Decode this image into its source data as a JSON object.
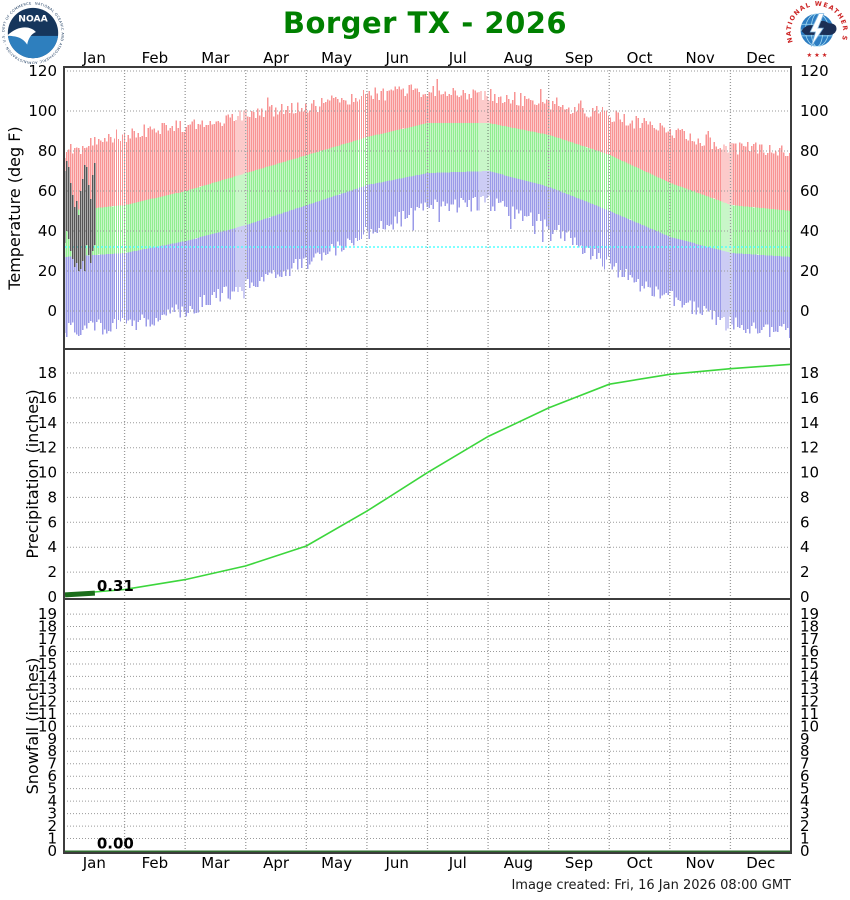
{
  "header": {
    "title": "Borger TX - 2026",
    "title_color": "#008000"
  },
  "logos": {
    "left": "noaa-logo",
    "right": "nws-logo",
    "noaa_text": "NOAA",
    "noaa_ring_text": "NATIONAL OCEANIC AND ATMOSPHERIC ADMINISTRATION - U.S. DEPARTMENT OF COMMERCE",
    "nws_ring_text": "NATIONAL WEATHER SERVICE",
    "nws_stars": "★ ★ ★"
  },
  "months": [
    "Jan",
    "Feb",
    "Mar",
    "Apr",
    "May",
    "Jun",
    "Jul",
    "Aug",
    "Sep",
    "Oct",
    "Nov",
    "Dec"
  ],
  "footer": {
    "created": "Image created: Fri, 16 Jan 2026 08:00 GMT"
  },
  "colors": {
    "record_high_band": "#f89494",
    "normal_band": "#90ee90",
    "record_low_band": "#9a9ae8",
    "observed_temp_bars": "#565656",
    "freeze_line": "#55ffff",
    "normal_precip_line": "#3cd63c",
    "observed_precip": "#1b6e1b",
    "observed_snow": "#2e6b2e",
    "grid": "#9a9a9a",
    "border": "#3c3c3c",
    "tick_text": "#000000"
  },
  "chart_data": [
    {
      "type": "area",
      "panel": "temperature",
      "ylabel": "Temperature (deg F)",
      "ylim": [
        -20,
        122
      ],
      "yticks": [
        0,
        20,
        40,
        60,
        80,
        100,
        120
      ],
      "grid": true,
      "freeze_line": 32,
      "series": [
        {
          "name": "record_high",
          "jagged": true,
          "monthly": [
            79,
            86,
            92,
            97,
            101,
            107,
            109,
            107,
            103,
            97,
            88,
            81,
            78
          ]
        },
        {
          "name": "normal_high",
          "monthly": [
            50,
            53,
            60,
            69,
            78,
            87,
            94,
            94,
            88,
            78,
            64,
            53,
            50
          ]
        },
        {
          "name": "normal_low",
          "monthly": [
            27,
            29,
            35,
            43,
            53,
            63,
            69,
            70,
            62,
            50,
            37,
            29,
            27
          ]
        },
        {
          "name": "record_low",
          "jagged": true,
          "monthly": [
            -8,
            -6,
            2,
            14,
            26,
            40,
            53,
            55,
            44,
            24,
            8,
            -5,
            -10
          ]
        }
      ],
      "record_high_spikes": [
        {
          "day": 187,
          "value": 116
        }
      ],
      "observed_daily_lo_hi": [
        [
          34,
          70
        ],
        [
          40,
          75
        ],
        [
          36,
          72
        ],
        [
          30,
          64
        ],
        [
          26,
          58
        ],
        [
          22,
          52
        ],
        [
          24,
          55
        ],
        [
          20,
          48
        ],
        [
          21,
          60
        ],
        [
          25,
          66
        ],
        [
          20,
          73
        ],
        [
          33,
          72
        ],
        [
          28,
          63
        ],
        [
          24,
          56
        ],
        [
          30,
          68
        ],
        [
          33,
          74
        ]
      ]
    },
    {
      "type": "line",
      "panel": "precipitation",
      "ylabel": "Precipitation (inches)",
      "ylim": [
        0,
        19.9
      ],
      "yticks": [
        0,
        2,
        4,
        6,
        8,
        10,
        12,
        14,
        16,
        18
      ],
      "grid": true,
      "normal_cumulative_monthly": [
        0.2,
        0.6,
        1.4,
        2.5,
        4.1,
        6.9,
        10.0,
        12.9,
        15.2,
        17.1,
        17.9,
        18.35,
        18.7
      ],
      "observed": {
        "label": "0.31",
        "value": 0.31,
        "through_day": 16
      }
    },
    {
      "type": "line",
      "panel": "snowfall",
      "ylabel": "Snowfall (inches)",
      "ylim": [
        0,
        20
      ],
      "yticks": [
        0,
        1,
        2,
        3,
        4,
        5,
        6,
        7,
        8,
        9,
        10,
        11,
        12,
        13,
        14,
        15,
        16,
        17,
        18,
        19
      ],
      "grid": true,
      "normal_cumulative_monthly": [
        0,
        0,
        0,
        0,
        0,
        0,
        0,
        0,
        0,
        0,
        0,
        0,
        0
      ],
      "observed": {
        "label": "0.00",
        "value": 0.0,
        "through_day": 16
      }
    }
  ]
}
